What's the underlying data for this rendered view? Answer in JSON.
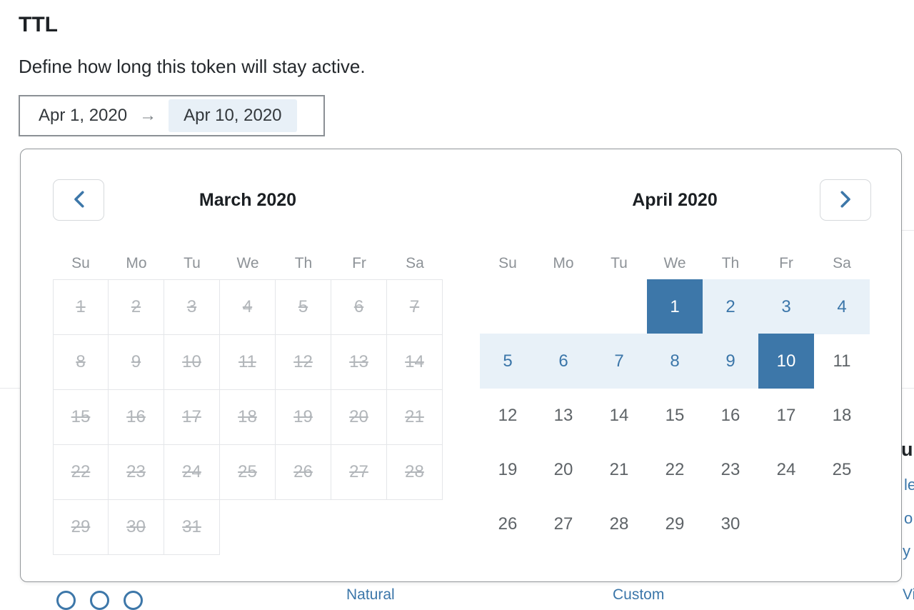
{
  "page": {
    "title": "TTL",
    "description": "Define how long this token will stay active."
  },
  "date_range_input": {
    "start_value": "Apr 1, 2020",
    "arrow_glyph": "→",
    "end_value": "Apr 10, 2020"
  },
  "calendar": {
    "nav": {
      "prev_icon": "chevron-left",
      "next_icon": "chevron-right"
    },
    "months": [
      {
        "title": "March 2020",
        "weekdays": [
          "Su",
          "Mo",
          "Tu",
          "We",
          "Th",
          "Fr",
          "Sa"
        ],
        "disabled": true,
        "weeks": [
          [
            1,
            2,
            3,
            4,
            5,
            6,
            7
          ],
          [
            8,
            9,
            10,
            11,
            12,
            13,
            14
          ],
          [
            15,
            16,
            17,
            18,
            19,
            20,
            21
          ],
          [
            22,
            23,
            24,
            25,
            26,
            27,
            28
          ],
          [
            29,
            30,
            31,
            null,
            null,
            null,
            null
          ]
        ]
      },
      {
        "title": "April 2020",
        "weekdays": [
          "Su",
          "Mo",
          "Tu",
          "We",
          "Th",
          "Fr",
          "Sa"
        ],
        "disabled": false,
        "range_start": 1,
        "range_end": 10,
        "weeks": [
          [
            null,
            null,
            null,
            1,
            2,
            3,
            4
          ],
          [
            5,
            6,
            7,
            8,
            9,
            10,
            11
          ],
          [
            12,
            13,
            14,
            15,
            16,
            17,
            18
          ],
          [
            19,
            20,
            21,
            22,
            23,
            24,
            25
          ],
          [
            26,
            27,
            28,
            29,
            30,
            null,
            null
          ]
        ]
      }
    ]
  },
  "background": {
    "right_edge_fragments": [
      "u",
      "le",
      "o",
      "y"
    ],
    "bottom_fragments": [
      "Natural",
      "Custom",
      "View"
    ]
  },
  "colors": {
    "accent_blue": "#3d77a9",
    "range_background": "#e8f1f8",
    "range_text": "#3b76a9",
    "selected_background": "#3d77a9",
    "selected_text": "#ffffff",
    "disabled_text": "#b2b6ba",
    "grid_border": "#e4e6e9",
    "input_highlight": "#e8f0f7",
    "popup_border": "#93979a"
  }
}
